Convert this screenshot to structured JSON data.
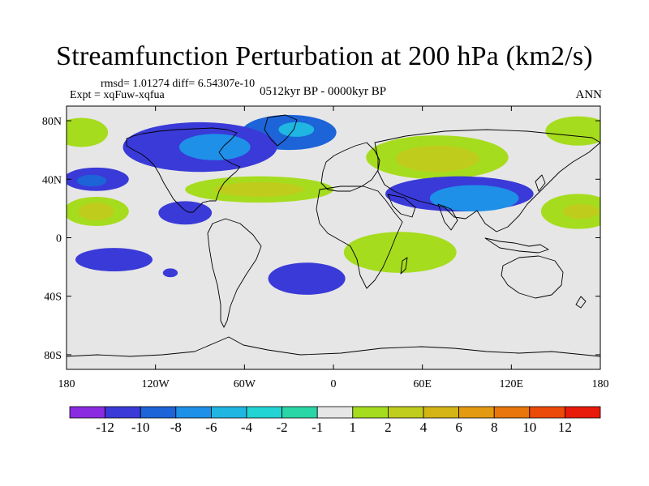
{
  "chart_data": {
    "type": "heatmap",
    "title": "Streamfunction Perturbation at 200 hPa (km2/s)",
    "stats_line": "rmsd= 1.01274 diff= 6.54307e-10",
    "experiment_label": "Expt = xqFuw-xqfua",
    "period_label": "0512kyr BP - 0000kyr BP",
    "season_label": "ANN",
    "xlabel": "",
    "ylabel": "",
    "x_ticks": [
      {
        "value": -180,
        "label": "180"
      },
      {
        "value": -120,
        "label": "120W"
      },
      {
        "value": -60,
        "label": "60W"
      },
      {
        "value": 0,
        "label": "0"
      },
      {
        "value": 60,
        "label": "60E"
      },
      {
        "value": 120,
        "label": "120E"
      },
      {
        "value": 180,
        "label": "180"
      }
    ],
    "y_ticks": [
      {
        "value": 80,
        "label": "80N"
      },
      {
        "value": 40,
        "label": "40N"
      },
      {
        "value": 0,
        "label": "0"
      },
      {
        "value": -40,
        "label": "40S"
      },
      {
        "value": -80,
        "label": "80S"
      }
    ],
    "xlim": [
      -180,
      180
    ],
    "ylim": [
      -90,
      90
    ],
    "colorbar": {
      "colors": [
        "#8a2be2",
        "#3a3ad8",
        "#1c64d8",
        "#1e90e8",
        "#20b6e2",
        "#22d4d4",
        "#2ad6a6",
        "#e6e6e6",
        "#a6dc1e",
        "#c0cc1c",
        "#d4b414",
        "#e49a10",
        "#e8760c",
        "#ec4a08",
        "#e81a0a"
      ],
      "labels": [
        "-12",
        "-10",
        "-8",
        "-6",
        "-4",
        "-2",
        "-1",
        "1",
        "2",
        "4",
        "6",
        "8",
        "10",
        "12"
      ]
    },
    "anomaly_regions": [
      {
        "name": "north-atlantic-high",
        "lon": -30,
        "lat": 72,
        "lon_halfwidth": 32,
        "lat_halfwidth": 12,
        "level": 2
      },
      {
        "name": "north-atlantic-high-core",
        "lon": -25,
        "lat": 74,
        "lon_halfwidth": 12,
        "lat_halfwidth": 5,
        "level": 4
      },
      {
        "name": "north-america-arctic-high",
        "lon": -90,
        "lat": 62,
        "lon_halfwidth": 52,
        "lat_halfwidth": 17,
        "level": 1
      },
      {
        "name": "north-america-arctic-high-core",
        "lon": -80,
        "lat": 62,
        "lon_halfwidth": 24,
        "lat_halfwidth": 9,
        "level": 3
      },
      {
        "name": "siberia-low",
        "lon": 70,
        "lat": 55,
        "lon_halfwidth": 48,
        "lat_halfwidth": 15,
        "level": 8
      },
      {
        "name": "siberia-low-core",
        "lon": 70,
        "lat": 54,
        "lon_halfwidth": 28,
        "lat_halfwidth": 9,
        "level": 9
      },
      {
        "name": "central-asia-high",
        "lon": 85,
        "lat": 30,
        "lon_halfwidth": 50,
        "lat_halfwidth": 12,
        "level": 1
      },
      {
        "name": "central-asia-high-core",
        "lon": 95,
        "lat": 27,
        "lon_halfwidth": 30,
        "lat_halfwidth": 9,
        "level": 3
      },
      {
        "name": "mid-atlantic-low",
        "lon": -50,
        "lat": 33,
        "lon_halfwidth": 50,
        "lat_halfwidth": 9,
        "level": 8
      },
      {
        "name": "mid-atlantic-low-core",
        "lon": -50,
        "lat": 33,
        "lon_halfwidth": 30,
        "lat_halfwidth": 5,
        "level": 9
      },
      {
        "name": "east-pacific-high",
        "lon": -100,
        "lat": 17,
        "lon_halfwidth": 18,
        "lat_halfwidth": 8,
        "level": 1
      },
      {
        "name": "north-pacific-west-high",
        "lon": -160,
        "lat": 40,
        "lon_halfwidth": 22,
        "lat_halfwidth": 8,
        "level": 1
      },
      {
        "name": "north-pacific-west-high-core",
        "lon": -163,
        "lat": 39,
        "lon_halfwidth": 10,
        "lat_halfwidth": 4,
        "level": 2
      },
      {
        "name": "subtropical-pacific-low",
        "lon": -160,
        "lat": 18,
        "lon_halfwidth": 22,
        "lat_halfwidth": 10,
        "level": 8
      },
      {
        "name": "subtropical-pacific-low-core",
        "lon": -160,
        "lat": 18,
        "lon_halfwidth": 12,
        "lat_halfwidth": 6,
        "level": 9
      },
      {
        "name": "far-west-pacific-low",
        "lon": 165,
        "lat": 18,
        "lon_halfwidth": 25,
        "lat_halfwidth": 12,
        "level": 8
      },
      {
        "name": "far-west-pacific-low-core",
        "lon": 167,
        "lat": 18,
        "lon_halfwidth": 12,
        "lat_halfwidth": 5,
        "level": 9
      },
      {
        "name": "arctic-west-low",
        "lon": -170,
        "lat": 72,
        "lon_halfwidth": 18,
        "lat_halfwidth": 10,
        "level": 8
      },
      {
        "name": "arctic-east-low",
        "lon": 165,
        "lat": 73,
        "lon_halfwidth": 22,
        "lat_halfwidth": 10,
        "level": 8
      },
      {
        "name": "africa-low",
        "lon": 45,
        "lat": -10,
        "lon_halfwidth": 38,
        "lat_halfwidth": 14,
        "level": 8
      },
      {
        "name": "south-atlantic-high",
        "lon": -18,
        "lat": -28,
        "lon_halfwidth": 26,
        "lat_halfwidth": 11,
        "level": 1
      },
      {
        "name": "south-pacific-high",
        "lon": -148,
        "lat": -15,
        "lon_halfwidth": 26,
        "lat_halfwidth": 8,
        "level": 1
      },
      {
        "name": "south-pacific-small-high",
        "lon": -110,
        "lat": -24,
        "lon_halfwidth": 5,
        "lat_halfwidth": 3,
        "level": 1
      }
    ]
  }
}
